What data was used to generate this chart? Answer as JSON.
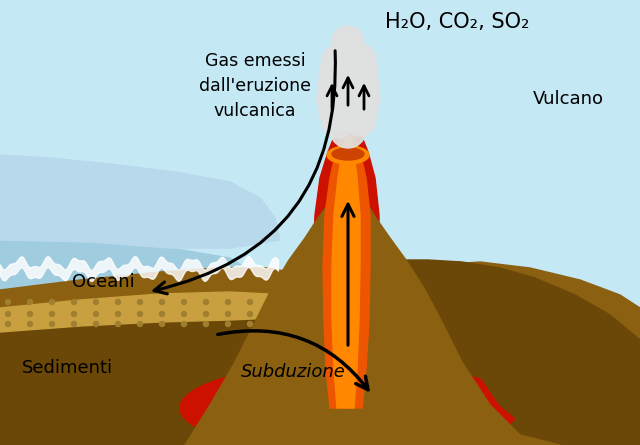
{
  "sky_color": "#c5e8f5",
  "ocean_color": "#a0cce0",
  "ocean_light": "#b8d8ec",
  "ground_color": "#8B6010",
  "ground_dark": "#6b4808",
  "ground_mid": "#7a5510",
  "sediment_color": "#c8a040",
  "sediment_dot": "#a08030",
  "magma_red": "#cc1100",
  "magma_orange": "#ee5500",
  "lava_hot": "#ff8800",
  "smoke_white": "#e0e0e0",
  "label_formula": "H₂O, CO₂, SO₂",
  "label_gas": "Gas emessi\ndall'eruzione\nvulcanica",
  "label_vulcano": "Vulcano",
  "label_oceani": "Oceani",
  "label_sedimenti": "Sedimenti",
  "label_subduzione": "Subduzione",
  "figsize": [
    6.4,
    4.45
  ],
  "dpi": 100
}
